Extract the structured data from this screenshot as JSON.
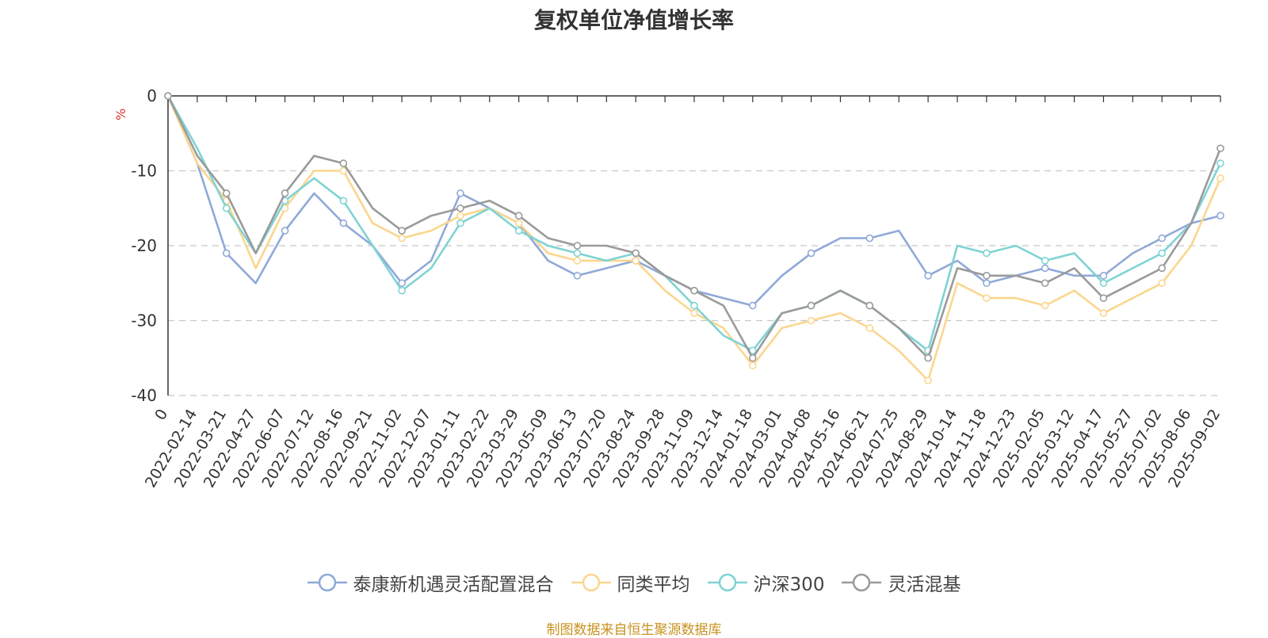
{
  "chart_data": {
    "type": "line",
    "title": "复权单位净值增长率",
    "ylabel": "%",
    "ylim": [
      -40,
      0
    ],
    "yticks": [
      0,
      -10,
      -20,
      -30,
      -40
    ],
    "grid": true,
    "legend_position": "bottom",
    "x": [
      "0",
      "2022-02-14",
      "2022-03-21",
      "2022-04-27",
      "2022-06-07",
      "2022-07-12",
      "2022-08-16",
      "2022-09-21",
      "2022-11-02",
      "2022-12-07",
      "2023-01-11",
      "2023-02-22",
      "2023-03-29",
      "2023-05-09",
      "2023-06-13",
      "2023-07-20",
      "2023-08-24",
      "2023-09-28",
      "2023-11-09",
      "2023-12-14",
      "2024-01-18",
      "2024-03-01",
      "2024-04-08",
      "2024-05-16",
      "2024-06-21",
      "2024-07-25",
      "2024-08-29",
      "2024-10-14",
      "2024-11-18",
      "2024-12-23",
      "2025-02-05",
      "2025-03-12",
      "2025-04-17",
      "2025-05-27",
      "2025-07-02",
      "2025-08-06",
      "2025-09-02"
    ],
    "series": [
      {
        "name": "泰康新机遇灵活配置混合",
        "color": "#8fa9d8",
        "values": [
          0,
          -9,
          -21,
          -25,
          -18,
          -13,
          -17,
          -20,
          -25,
          -22,
          -13,
          -15,
          -17,
          -22,
          -24,
          -23,
          -22,
          -24,
          -26,
          -27,
          -28,
          -24,
          -21,
          -19,
          -19,
          -18,
          -24,
          -22,
          -25,
          -24,
          -23,
          -24,
          -24,
          -21,
          -19,
          -17,
          -16
        ]
      },
      {
        "name": "同类平均",
        "color": "#fbd68e",
        "values": [
          0,
          -9,
          -14,
          -23,
          -15,
          -10,
          -10,
          -17,
          -19,
          -18,
          -16,
          -15,
          -17,
          -21,
          -22,
          -22,
          -22,
          -26,
          -29,
          -31,
          -36,
          -31,
          -30,
          -29,
          -31,
          -34,
          -38,
          -25,
          -27,
          -27,
          -28,
          -26,
          -29,
          -27,
          -25,
          -20,
          -11
        ]
      },
      {
        "name": "沪深300",
        "color": "#7fd3d3",
        "values": [
          0,
          -7,
          -15,
          -21,
          -14,
          -11,
          -14,
          -20,
          -26,
          -23,
          -17,
          -15,
          -18,
          -20,
          -21,
          -22,
          -21,
          -24,
          -28,
          -32,
          -34,
          -29,
          -28,
          -26,
          -28,
          -31,
          -34,
          -20,
          -21,
          -20,
          -22,
          -21,
          -25,
          -23,
          -21,
          -17,
          -9
        ]
      },
      {
        "name": "灵活混基",
        "color": "#9a9a9a",
        "values": [
          0,
          -8,
          -13,
          -21,
          -13,
          -8,
          -9,
          -15,
          -18,
          -16,
          -15,
          -14,
          -16,
          -19,
          -20,
          -20,
          -21,
          -24,
          -26,
          -28,
          -35,
          -29,
          -28,
          -26,
          -28,
          -31,
          -35,
          -23,
          -24,
          -24,
          -25,
          -23,
          -27,
          -25,
          -23,
          -17,
          -7
        ]
      }
    ]
  },
  "source_note": "制图数据来自恒生聚源数据库"
}
